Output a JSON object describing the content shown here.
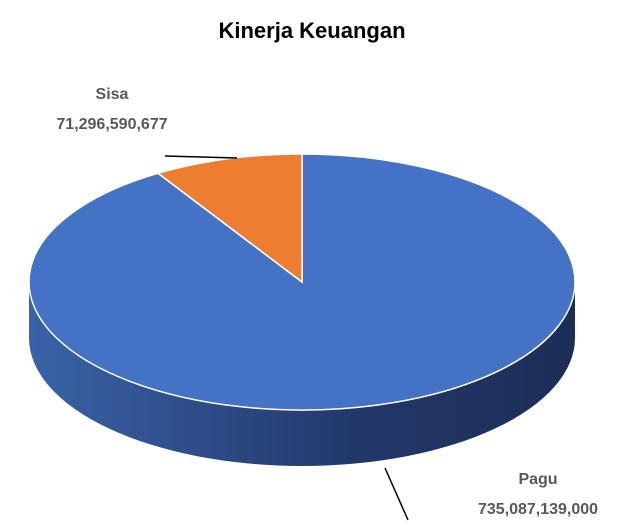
{
  "chart_data": {
    "type": "pie",
    "title": "Kinerja Keuangan",
    "categories": [
      "Pagu",
      "Sisa"
    ],
    "values": [
      735087139000,
      71296590677
    ],
    "value_labels": [
      "735,087,139,000",
      "71,296,590,677"
    ],
    "colors": [
      "#4472c4",
      "#ed7d31"
    ]
  }
}
